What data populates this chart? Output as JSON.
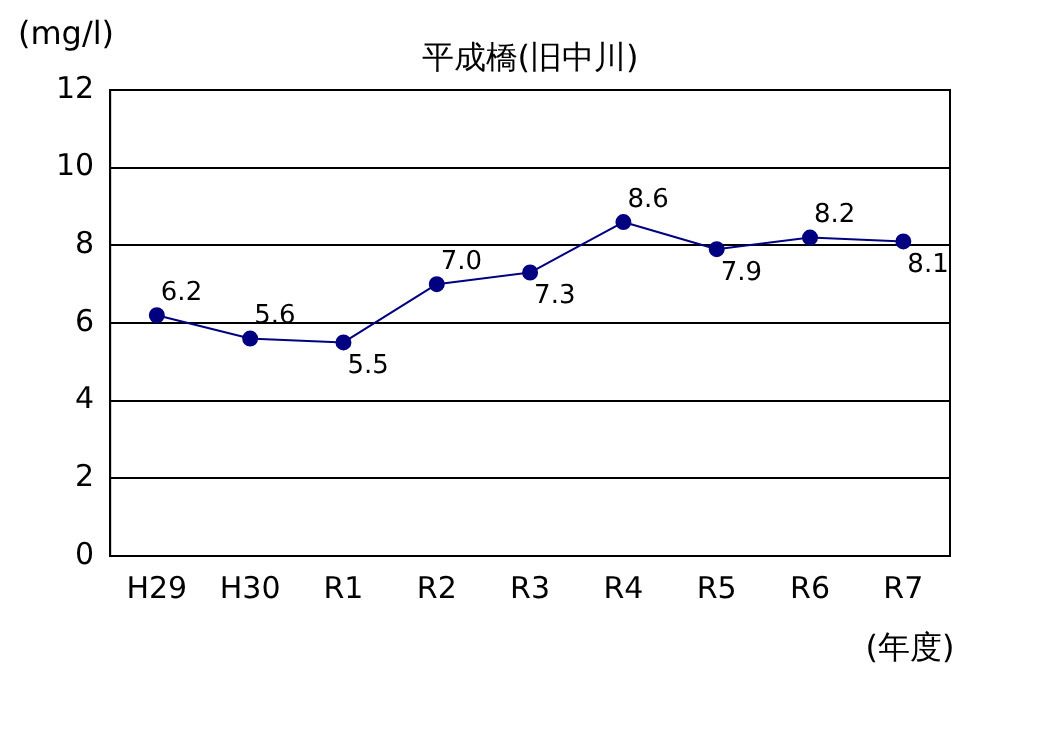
{
  "chart_data": {
    "type": "line",
    "title": "平成橋(旧中川)",
    "ylabel": "(mg/l)",
    "xlabel": "(年度)",
    "categories": [
      "H29",
      "H30",
      "R1",
      "R2",
      "R3",
      "R4",
      "R5",
      "R6",
      "R7"
    ],
    "series": [
      {
        "color": "#000080",
        "values": [
          6.2,
          5.6,
          5.5,
          7.0,
          7.3,
          8.6,
          7.9,
          8.2,
          8.1
        ],
        "value_labels": [
          "6.2",
          "5.6",
          "5.5",
          "7.0",
          "7.3",
          "8.6",
          "7.9",
          "8.2",
          "8.1"
        ]
      }
    ],
    "ylim": [
      0,
      12
    ],
    "yticks": [
      0,
      2,
      4,
      6,
      8,
      10,
      12
    ],
    "grid": "y",
    "legend": false,
    "marker": "circle",
    "line_style": "solid"
  }
}
